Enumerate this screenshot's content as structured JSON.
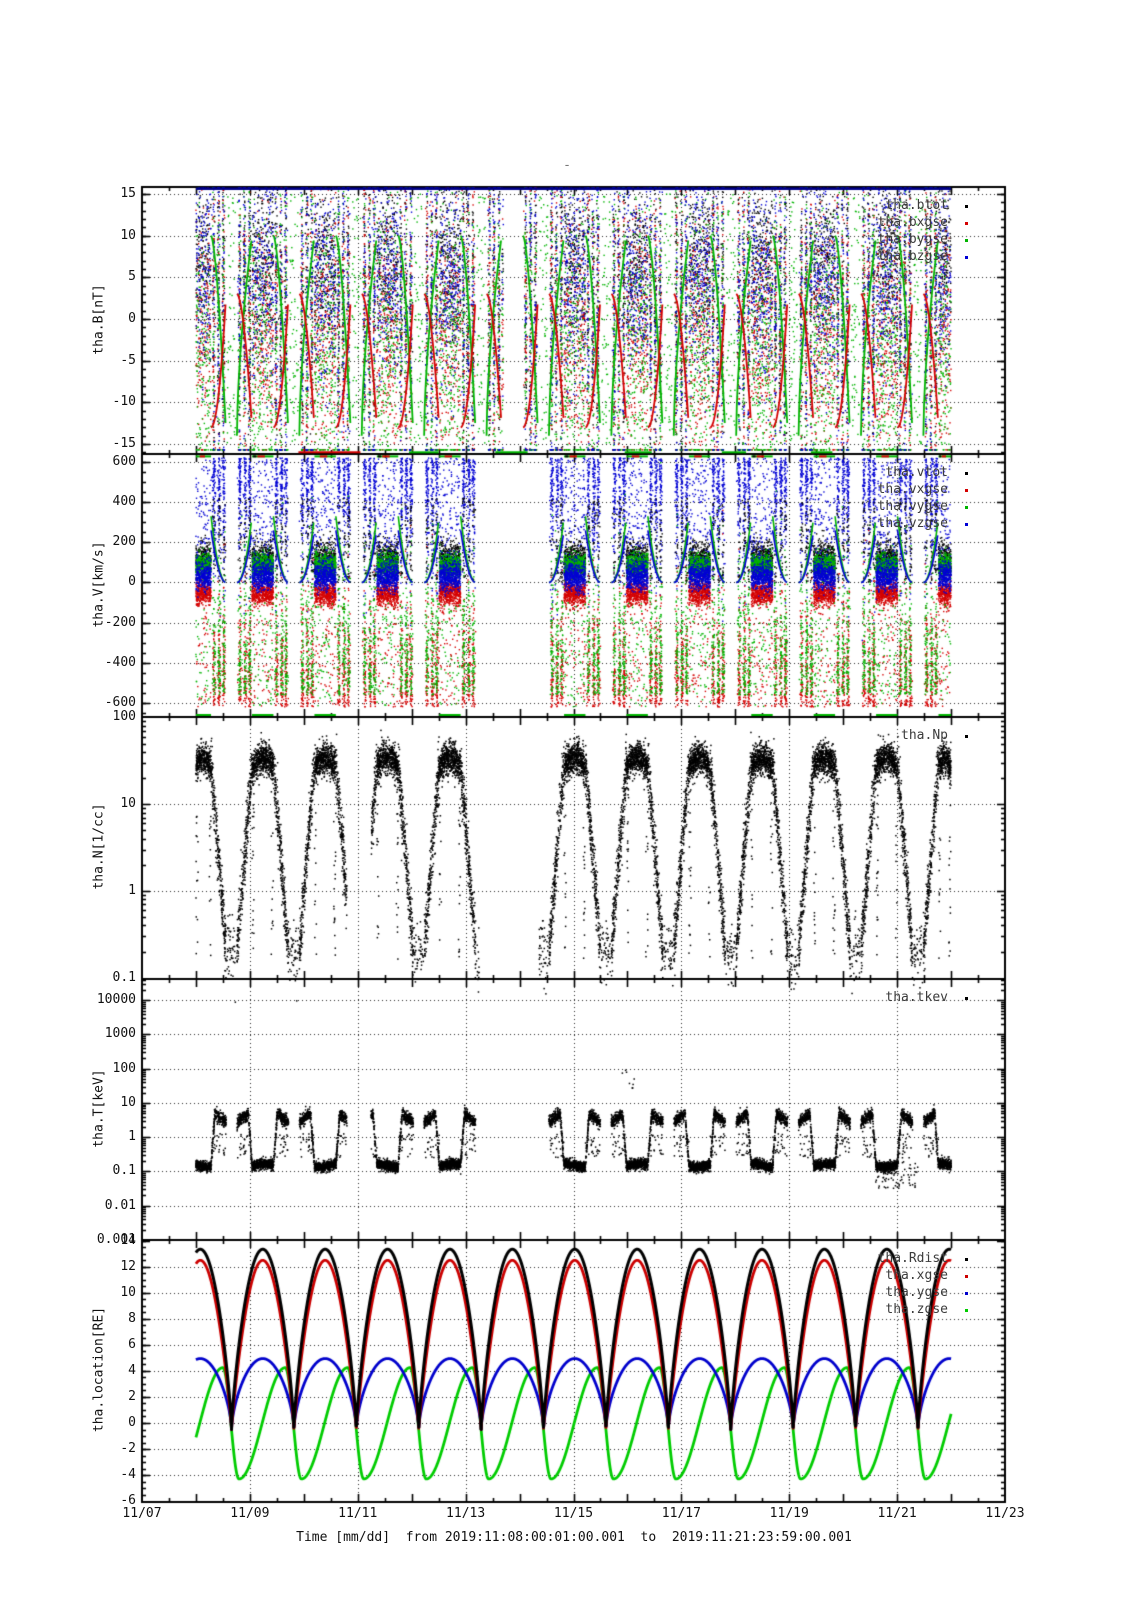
{
  "title": "-",
  "x_axis": {
    "title": "Time [mm/dd]  from 2019:11:08:00:01:00.001  to  2019:11:21:23:59:00.001",
    "tick_labels": [
      "11/07",
      "11/09",
      "11/11",
      "11/13",
      "11/15",
      "11/17",
      "11/19",
      "11/21",
      "11/23"
    ],
    "tick_days": [
      0,
      2,
      4,
      6,
      8,
      10,
      12,
      14,
      16
    ],
    "minor_tick_days": 0.5,
    "range_days": [
      0,
      16
    ]
  },
  "chart_data": {
    "type": "scatter",
    "grid": "dotted",
    "legend_position": "top-right-inside",
    "time_start_label": "2019:11:08:00:01:00.001",
    "time_end_label": "2019:11:21:23:59:00.001",
    "orbit": {
      "period_days": 1.157,
      "first_perigee_day": 1.66,
      "data_start_day": 1.0,
      "data_end_day": 15.0,
      "msp_half_width_days": 0.38,
      "perigee_half_width_days": 0.1
    },
    "gaps": [
      {
        "days": [
          6.25,
          7.35
        ],
        "panels": [
          "tha.V",
          "tha.N",
          "tha.T"
        ]
      },
      {
        "days": [
          3.8,
          4.25
        ],
        "panels": [
          "tha.N",
          "tha.T"
        ]
      },
      {
        "days": [
          6.7,
          7.1
        ],
        "panels": [
          "tha.B"
        ]
      }
    ],
    "panels": [
      {
        "id": "tha.B",
        "ylabel": "tha.B[nT]",
        "scale": "linear",
        "yrange": [
          -16.2,
          15.84
        ],
        "clip": 15.7,
        "minor_step": 1,
        "yticks": [
          {
            "v": 15,
            "label": "15"
          },
          {
            "v": 10,
            "label": "10"
          },
          {
            "v": 5,
            "label": "5"
          },
          {
            "v": 0,
            "label": "0"
          },
          {
            "v": -5,
            "label": "-5"
          },
          {
            "v": -10,
            "label": "-10"
          },
          {
            "v": -15,
            "label": "-15"
          }
        ],
        "legend": [
          {
            "label": "tha.btot",
            "color": "#000000"
          },
          {
            "label": "tha.bxgse",
            "color": "#d40000"
          },
          {
            "label": "tha.bygse",
            "color": "#00b400"
          },
          {
            "label": "tha.bzgse",
            "color": "#0000d4"
          }
        ],
        "series": [
          {
            "name": "tha.btot",
            "color": "#000000",
            "sheath_mean": 7,
            "sheath_sigma": 5
          },
          {
            "name": "tha.bxgse",
            "color": "#d40000",
            "sheath_mean": -2,
            "sheath_sigma": 7
          },
          {
            "name": "tha.bygse",
            "color": "#00b400",
            "sheath_mean": -4,
            "sheath_sigma": 8
          },
          {
            "name": "tha.bzgse",
            "color": "#0000d4",
            "sheath_mean": 5,
            "sheath_sigma": 6
          }
        ],
        "top_saturation_line_color": "#00008b"
      },
      {
        "id": "tha.V",
        "ylabel": "tha.V[km/s]",
        "scale": "linear",
        "yrange": [
          -670,
          640
        ],
        "clip": 655,
        "minor_step": 50,
        "yticks": [
          {
            "v": 600,
            "label": "600"
          },
          {
            "v": 400,
            "label": "400"
          },
          {
            "v": 200,
            "label": "200"
          },
          {
            "v": 0,
            "label": "0"
          },
          {
            "v": -200,
            "label": "-200"
          },
          {
            "v": -400,
            "label": "-400"
          },
          {
            "v": -600,
            "label": "-600"
          }
        ],
        "legend": [
          {
            "label": "tha.vtot",
            "color": "#000000"
          },
          {
            "label": "tha.vxgse",
            "color": "#d40000"
          },
          {
            "label": "tha.vygse",
            "color": "#00b400"
          },
          {
            "label": "tha.vzgse",
            "color": "#0000d4"
          }
        ],
        "series": [
          {
            "name": "tha.vtot",
            "color": "#000000",
            "sheath_mean": 110,
            "sheath_sigma": 45
          },
          {
            "name": "tha.vxgse",
            "color": "#d40000",
            "sheath_mean": -55,
            "sheath_sigma": 30
          },
          {
            "name": "tha.vygse",
            "color": "#00b400",
            "sheath_mean": 85,
            "sheath_sigma": 30
          },
          {
            "name": "tha.vzgse",
            "color": "#0000d4",
            "sheath_mean": 30,
            "sheath_sigma": 35
          }
        ]
      },
      {
        "id": "tha.N",
        "ylabel": "tha.N[1/cc]",
        "scale": "log",
        "yrange": [
          0.0966,
          101.2
        ],
        "minor_step": "log-decade",
        "yticks": [
          {
            "v": 100,
            "label": "100"
          },
          {
            "v": 10,
            "label": "10"
          },
          {
            "v": 1,
            "label": "1"
          },
          {
            "v": 0.1,
            "label": "0.1"
          }
        ],
        "legend": [
          {
            "label": "tha.Np",
            "color": "#000000"
          }
        ],
        "series": [
          {
            "name": "tha.Np",
            "color": "#000000",
            "sheath_density_cc": 28,
            "magnetosphere_density_cc": 0.25
          }
        ]
      },
      {
        "id": "tha.T",
        "ylabel": "tha.T[keV]",
        "scale": "log",
        "yrange": [
          0.001,
          41700
        ],
        "minor_step": "log-decade",
        "yticks": [
          {
            "v": 10000,
            "label": "10000"
          },
          {
            "v": 1000,
            "label": "1000"
          },
          {
            "v": 100,
            "label": "100"
          },
          {
            "v": 10,
            "label": "10"
          },
          {
            "v": 1,
            "label": "1"
          },
          {
            "v": 0.1,
            "label": "0.1"
          },
          {
            "v": 0.01,
            "label": "0.01"
          },
          {
            "v": 0.001,
            "label": "0.001"
          }
        ],
        "legend": [
          {
            "label": "tha.tkev",
            "color": "#000000"
          }
        ],
        "series": [
          {
            "name": "tha.tkev",
            "color": "#000000",
            "sheath_temp_kev": 0.15,
            "magnetosphere_temp_kev": 3.2
          }
        ]
      },
      {
        "id": "tha.location",
        "ylabel": "tha.location[RE]",
        "scale": "linear",
        "yrange": [
          -6.07,
          14.06
        ],
        "minor_step": 0.5,
        "yticks": [
          {
            "v": 14,
            "label": "14"
          },
          {
            "v": 12,
            "label": "12"
          },
          {
            "v": 10,
            "label": "10"
          },
          {
            "v": 8,
            "label": "8"
          },
          {
            "v": 6,
            "label": "6"
          },
          {
            "v": 4,
            "label": "4"
          },
          {
            "v": 2,
            "label": "2"
          },
          {
            "v": 0,
            "label": "0"
          },
          {
            "v": -2,
            "label": "-2"
          },
          {
            "v": -4,
            "label": "-4"
          },
          {
            "v": -6,
            "label": "-6"
          }
        ],
        "legend": [
          {
            "label": "tha.Rdist",
            "color": "#000000"
          },
          {
            "label": "tha.xgse",
            "color": "#cc0000"
          },
          {
            "label": "tha.ygse",
            "color": "#0000cc"
          },
          {
            "label": "tha.zgse",
            "color": "#00cc00"
          }
        ],
        "series": [
          {
            "name": "tha.Rdist",
            "color": "#000000",
            "peak_re": 13.35,
            "perigee_re": -0.5,
            "shape_exp": 0.75,
            "width": 3.0
          },
          {
            "name": "tha.xgse",
            "color": "#cc0000",
            "peak_re": 12.5,
            "perigee_re": -0.5,
            "shape_exp": 0.85,
            "width": 2.8
          },
          {
            "name": "tha.ygse",
            "color": "#0000cc",
            "peak_re": 4.95,
            "perigee_re": -0.5,
            "shape_exp": 0.62,
            "width": 2.8
          },
          {
            "name": "tha.zgse",
            "color": "#00cc00",
            "peak_re": 4.25,
            "trough_re": -4.3,
            "trough_phase": 0.12,
            "peak_phase": 0.86,
            "width": 2.8
          }
        ]
      }
    ]
  },
  "style_colors": {
    "frame": "#000000",
    "grid": "#000000",
    "saturation_navy": "#00008b"
  }
}
